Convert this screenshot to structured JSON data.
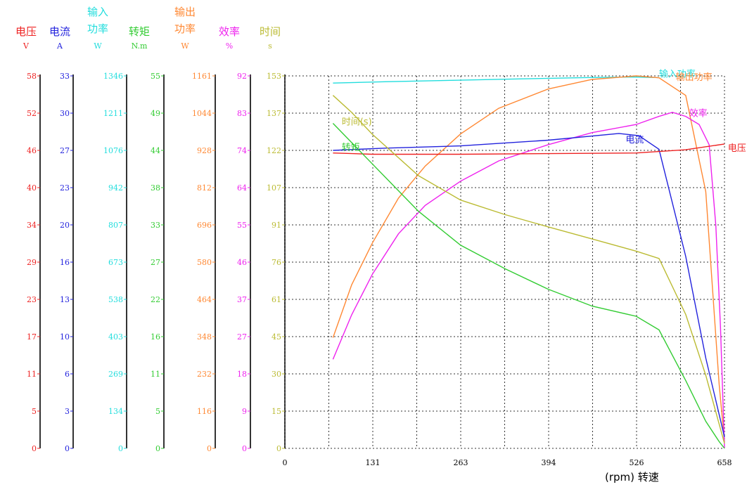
{
  "chart_data": {
    "type": "line",
    "xlabel": "(rpm)  转速",
    "x_ticks": [
      "0",
      "131",
      "263",
      "394",
      "526",
      "658"
    ],
    "xlim": [
      0,
      658
    ],
    "grid": true,
    "axes": [
      {
        "key": "voltage",
        "title": "电压",
        "unit": "V",
        "color": "#ee2222",
        "ticks": [
          "0",
          "5",
          "11",
          "17",
          "23",
          "29",
          "34",
          "40",
          "46",
          "52",
          "58"
        ],
        "max": 58
      },
      {
        "key": "current",
        "title": "电流",
        "unit": "A",
        "color": "#2222dd",
        "ticks": [
          "0",
          "3",
          "6",
          "10",
          "13",
          "16",
          "20",
          "23",
          "27",
          "30",
          "33"
        ],
        "max": 33
      },
      {
        "key": "input_power",
        "title": "输入\n功率",
        "unit": "W",
        "color": "#22dddd",
        "ticks": [
          "0",
          "134",
          "269",
          "403",
          "538",
          "673",
          "807",
          "942",
          "1076",
          "1211",
          "1346"
        ],
        "max": 1346
      },
      {
        "key": "torque",
        "title": "转矩",
        "unit": "N.m",
        "color": "#33cc33",
        "ticks": [
          "0",
          "5",
          "11",
          "16",
          "22",
          "27",
          "33",
          "38",
          "44",
          "49",
          "55"
        ],
        "max": 55
      },
      {
        "key": "output_power",
        "title": "输出\n功率",
        "unit": "W",
        "color": "#ff8833",
        "ticks": [
          "0",
          "116",
          "232",
          "348",
          "464",
          "580",
          "696",
          "812",
          "928",
          "1044",
          "1161"
        ],
        "max": 1161
      },
      {
        "key": "efficiency",
        "title": "效率",
        "unit": "%",
        "color": "#ee22ee",
        "ticks": [
          "0",
          "9",
          "18",
          "27",
          "37",
          "46",
          "55",
          "64",
          "74",
          "83",
          "92"
        ],
        "max": 92
      },
      {
        "key": "time",
        "title": "时间",
        "unit": "s",
        "color": "#bbbb33",
        "ticks": [
          "0",
          "15",
          "30",
          "45",
          "61",
          "76",
          "91",
          "107",
          "122",
          "137",
          "153"
        ],
        "max": 153
      }
    ],
    "series": [
      {
        "key": "input_power",
        "name": "输入功率",
        "color": "#22dddd",
        "x": [
          72,
          150,
          250,
          350,
          450,
          520,
          560
        ],
        "y": [
          1320,
          1325,
          1330,
          1335,
          1340,
          1342,
          1340
        ]
      },
      {
        "key": "output_power",
        "name": "输出功率",
        "color": "#ff8833",
        "x": [
          72,
          100,
          131,
          170,
          210,
          263,
          320,
          394,
          460,
          526,
          560,
          600,
          630,
          650,
          658
        ],
        "y": [
          345,
          510,
          640,
          780,
          880,
          980,
          1060,
          1120,
          1150,
          1161,
          1155,
          1100,
          800,
          200,
          20
        ]
      },
      {
        "key": "efficiency",
        "name": "效率",
        "color": "#ee22ee",
        "x": [
          72,
          100,
          131,
          170,
          210,
          263,
          320,
          394,
          460,
          526,
          560,
          580,
          600,
          620,
          635,
          645,
          652,
          658
        ],
        "y": [
          22,
          33,
          43,
          53,
          60,
          66,
          71,
          75,
          78,
          80,
          82,
          83,
          82,
          80,
          75,
          55,
          30,
          0
        ]
      },
      {
        "key": "current",
        "name": "电流",
        "color": "#2222dd",
        "x": [
          72,
          150,
          263,
          394,
          500,
          530,
          560,
          600,
          630,
          650,
          658
        ],
        "y": [
          26.4,
          26.6,
          26.8,
          27.3,
          27.9,
          27.7,
          26.5,
          17,
          8,
          3,
          1
        ]
      },
      {
        "key": "voltage",
        "name": "电压",
        "color": "#ee2222",
        "x": [
          72,
          131,
          263,
          394,
          526,
          600,
          658
        ],
        "y": [
          46.0,
          45.8,
          45.8,
          45.9,
          46.0,
          46.5,
          47.4
        ]
      },
      {
        "key": "time",
        "name": "时间(s)",
        "color": "#bbbb33",
        "x": [
          72,
          100,
          131,
          200,
          263,
          330,
          394,
          460,
          526,
          560,
          600,
          630,
          650,
          658
        ],
        "y": [
          145,
          138,
          129,
          112,
          102,
          96,
          91,
          86,
          81,
          78,
          55,
          30,
          10,
          2
        ]
      },
      {
        "key": "torque",
        "name": "转矩",
        "color": "#33cc33",
        "x": [
          72,
          131,
          200,
          263,
          330,
          394,
          460,
          526,
          560,
          600,
          630,
          650,
          658
        ],
        "y": [
          48,
          42,
          35,
          30,
          26.5,
          23.5,
          21,
          19.5,
          17.5,
          10,
          4,
          1,
          0
        ]
      }
    ],
    "annotations": [
      {
        "text": "输入功率",
        "key": "input_power",
        "x": 560,
        "y": 1342
      },
      {
        "text": "输出功率",
        "key": "output_power",
        "x": 585,
        "y": 1148
      },
      {
        "text": "效率",
        "key": "efficiency",
        "x": 605,
        "y": 82
      },
      {
        "text": "电流",
        "key": "current",
        "x": 510,
        "y": 27.1
      },
      {
        "text": "电压",
        "key": "voltage",
        "x": 663,
        "y": 46.3
      },
      {
        "text": "时间(s)",
        "key": "time",
        "x": 85,
        "y": 133
      },
      {
        "text": "转矩",
        "key": "torque",
        "x": 85,
        "y": 44
      }
    ]
  }
}
